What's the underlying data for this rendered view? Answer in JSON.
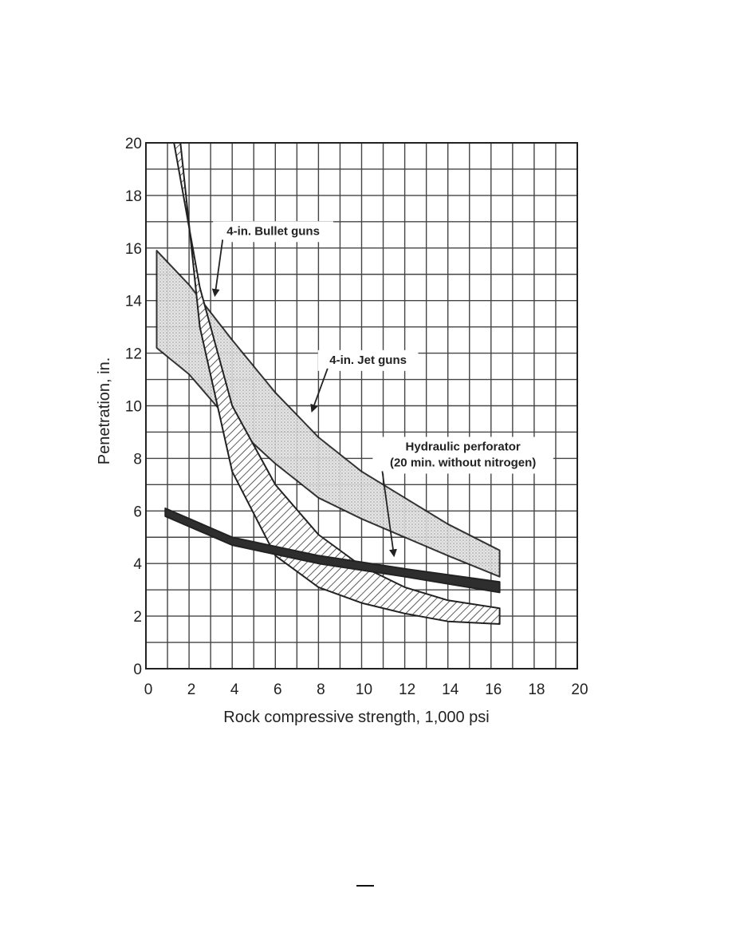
{
  "chart_data": {
    "type": "area",
    "title": "",
    "xlabel": "Rock compressive strength, 1,000 psi",
    "ylabel": "Penetration, in.",
    "xlim": [
      0,
      20
    ],
    "ylim": [
      0,
      20
    ],
    "xticks": [
      0,
      2,
      4,
      6,
      8,
      10,
      12,
      14,
      16,
      18,
      20
    ],
    "yticks": [
      0,
      2,
      4,
      6,
      8,
      10,
      12,
      14,
      16,
      18,
      20
    ],
    "grid": true,
    "legend": "none",
    "series": [
      {
        "name": "4-in. Bullet guns",
        "fill": "diagonal-hatch",
        "upper": [
          [
            1.3,
            20
          ],
          [
            2.5,
            14.5
          ],
          [
            4,
            10
          ],
          [
            6,
            7
          ],
          [
            8,
            5.1
          ],
          [
            10,
            3.9
          ],
          [
            12,
            3.1
          ],
          [
            14,
            2.6
          ],
          [
            16.4,
            2.3
          ]
        ],
        "lower": [
          [
            1.6,
            20
          ],
          [
            2.5,
            13
          ],
          [
            4,
            7.5
          ],
          [
            6,
            4.3
          ],
          [
            8,
            3.1
          ],
          [
            10,
            2.5
          ],
          [
            12,
            2.1
          ],
          [
            14,
            1.8
          ],
          [
            16.4,
            1.7
          ]
        ]
      },
      {
        "name": "4-in. Jet guns",
        "fill": "light-stipple",
        "upper": [
          [
            0.5,
            15.9
          ],
          [
            2,
            14.6
          ],
          [
            4,
            12.5
          ],
          [
            6,
            10.5
          ],
          [
            8,
            8.8
          ],
          [
            10,
            7.5
          ],
          [
            12,
            6.5
          ],
          [
            14,
            5.5
          ],
          [
            16.4,
            4.5
          ]
        ],
        "lower": [
          [
            0.5,
            12.2
          ],
          [
            2,
            11.2
          ],
          [
            4,
            9.3
          ],
          [
            6,
            7.8
          ],
          [
            8,
            6.5
          ],
          [
            10,
            5.7
          ],
          [
            12,
            5
          ],
          [
            14,
            4.3
          ],
          [
            16.4,
            3.5
          ]
        ]
      },
      {
        "name": "Hydraulic perforator (20 min. without nitrogen)",
        "fill": "solid-dark",
        "upper": [
          [
            0.9,
            6.1
          ],
          [
            4,
            5
          ],
          [
            8,
            4.3
          ],
          [
            12,
            3.8
          ],
          [
            16.4,
            3.3
          ]
        ],
        "lower": [
          [
            0.9,
            5.8
          ],
          [
            4,
            4.7
          ],
          [
            8,
            4
          ],
          [
            12,
            3.5
          ],
          [
            16.4,
            2.9
          ]
        ]
      }
    ],
    "annotations": [
      {
        "lines": [
          "4-in. Bullet guns"
        ],
        "x": 5.9,
        "y": 16.5,
        "arrow_to": [
          3.2,
          14.2
        ]
      },
      {
        "lines": [
          "4-in. Jet guns"
        ],
        "x": 10.3,
        "y": 11.6,
        "arrow_to": [
          7.7,
          9.8
        ]
      },
      {
        "lines": [
          "Hydraulic perforator",
          "(20 min. without nitrogen)"
        ],
        "x": 14.7,
        "y": 8.3,
        "arrow_to": [
          11.5,
          4.3
        ]
      }
    ]
  }
}
